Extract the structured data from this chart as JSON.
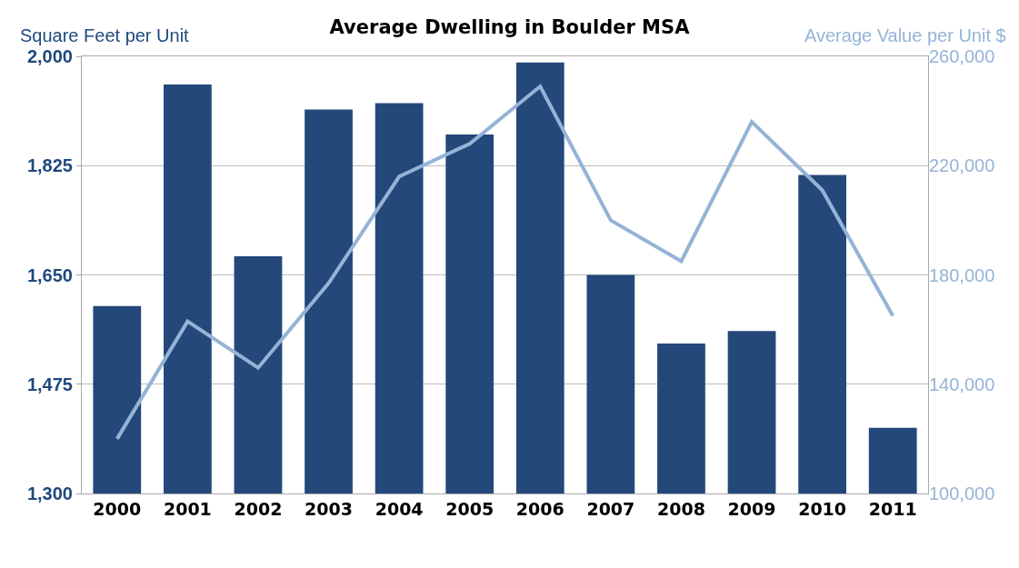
{
  "chart_data": {
    "type": "bar",
    "title": "Average Dwelling in Boulder MSA",
    "ylabel": "Square Feet per Unit",
    "y2label": "Average Value per Unit $",
    "categories": [
      "2000",
      "2001",
      "2002",
      "2003",
      "2004",
      "2005",
      "2006",
      "2007",
      "2008",
      "2009",
      "2010",
      "2011"
    ],
    "series": [
      {
        "color": "#24487a",
        "values": [
          1600,
          1955,
          1680,
          1915,
          1925,
          1875,
          1990,
          1650,
          1540,
          1560,
          1810,
          1405
        ]
      },
      {
        "type": "line",
        "axis": "y2",
        "color": "#95b3d7",
        "values": [
          120000,
          163000,
          146000,
          177000,
          216000,
          228000,
          249000,
          200000,
          185000,
          236000,
          211000,
          165000
        ]
      }
    ],
    "ylim": [
      1300,
      2000
    ],
    "yticks": [
      {
        "value": 1300,
        "label": "1,300"
      },
      {
        "value": 1475,
        "label": "1,475"
      },
      {
        "value": 1650,
        "label": "1,650"
      },
      {
        "value": 1825,
        "label": "1,825"
      },
      {
        "value": 2000,
        "label": "2,000"
      }
    ],
    "y2lim": [
      100000,
      260000
    ],
    "y2ticks": [
      {
        "value": 100000,
        "label": "100,000"
      },
      {
        "value": 140000,
        "label": "140,000"
      },
      {
        "value": 180000,
        "label": "180,000"
      },
      {
        "value": 220000,
        "label": "220,000"
      },
      {
        "value": 260000,
        "label": "260,000"
      }
    ],
    "grid": "y"
  }
}
